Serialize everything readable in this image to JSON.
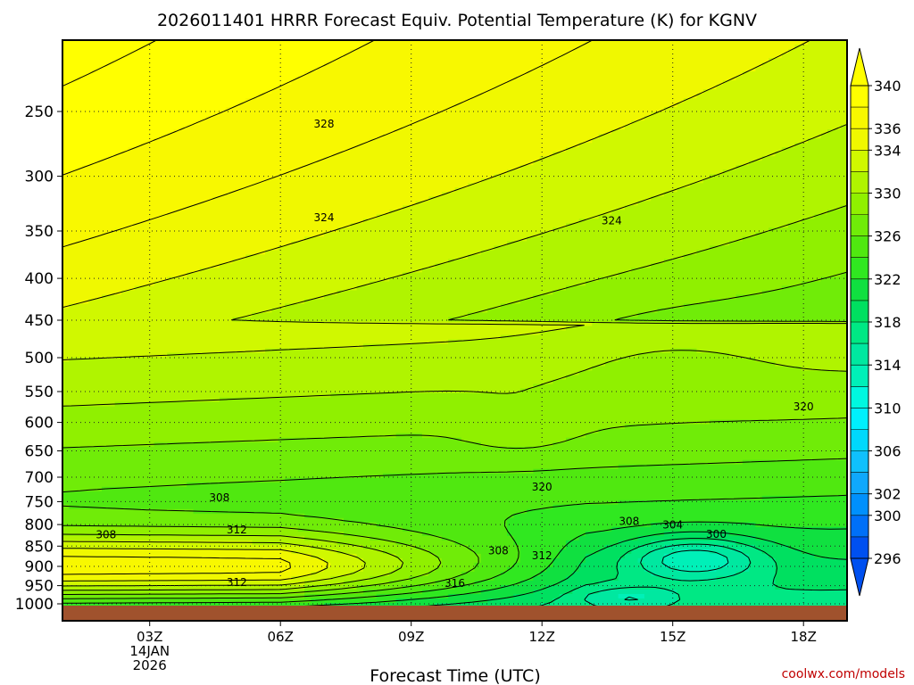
{
  "chart_data": {
    "type": "heatmap",
    "title": "2026011401 HRRR Forecast Equiv. Potential Temperature (K) for KGNV",
    "xlabel": "Forecast Time (UTC)",
    "ylabel": "",
    "x_ticks": [
      {
        "hour": 3,
        "label": "03Z",
        "date_line1": "14JAN",
        "date_line2": "2026"
      },
      {
        "hour": 6,
        "label": "06Z"
      },
      {
        "hour": 9,
        "label": "09Z"
      },
      {
        "hour": 12,
        "label": "12Z"
      },
      {
        "hour": 15,
        "label": "15Z"
      },
      {
        "hour": 18,
        "label": "18Z"
      }
    ],
    "x_range": [
      1,
      19
    ],
    "y_ticks": [
      250,
      300,
      350,
      400,
      450,
      500,
      550,
      600,
      650,
      700,
      750,
      800,
      850,
      900,
      950,
      1000
    ],
    "y_range_hPa": [
      200,
      1000
    ],
    "y_scale": "log",
    "grid": true,
    "colorbar": {
      "levels": [
        296,
        298,
        300,
        302,
        304,
        306,
        308,
        310,
        312,
        314,
        316,
        318,
        320,
        322,
        324,
        326,
        328,
        330,
        332,
        334,
        336,
        338,
        340
      ],
      "labels": [
        296,
        300,
        302,
        306,
        310,
        314,
        318,
        322,
        326,
        330,
        334,
        336,
        340
      ],
      "colors": [
        "#0050f0",
        "#0070f8",
        "#0090fc",
        "#10a8fc",
        "#10c0fc",
        "#00d8fc",
        "#00f0fc",
        "#00f8e0",
        "#00f0b8",
        "#00e8a0",
        "#00e884",
        "#00e060",
        "#10e040",
        "#30e820",
        "#50e810",
        "#70ec08",
        "#90f000",
        "#b0f400",
        "#d0f800",
        "#f0f800",
        "#f8f800",
        "#ffff00"
      ]
    },
    "contour_labels": [
      {
        "text": "328",
        "hour": 7,
        "p": 259
      },
      {
        "text": "324",
        "hour": 7,
        "p": 337
      },
      {
        "text": "324",
        "hour": 13.6,
        "p": 340
      },
      {
        "text": "320",
        "hour": 18,
        "p": 574
      },
      {
        "text": "320",
        "hour": 12,
        "p": 720
      },
      {
        "text": "308",
        "hour": 4.6,
        "p": 742
      },
      {
        "text": "308",
        "hour": 2,
        "p": 823
      },
      {
        "text": "312",
        "hour": 5,
        "p": 812
      },
      {
        "text": "308",
        "hour": 14,
        "p": 793
      },
      {
        "text": "304",
        "hour": 15,
        "p": 801
      },
      {
        "text": "300",
        "hour": 16,
        "p": 822
      },
      {
        "text": "308",
        "hour": 11,
        "p": 861
      },
      {
        "text": "312",
        "hour": 12,
        "p": 873
      },
      {
        "text": "312",
        "hour": 5,
        "p": 941
      },
      {
        "text": "316",
        "hour": 10,
        "p": 944
      }
    ]
  },
  "watermark": "coolwx.com/models"
}
